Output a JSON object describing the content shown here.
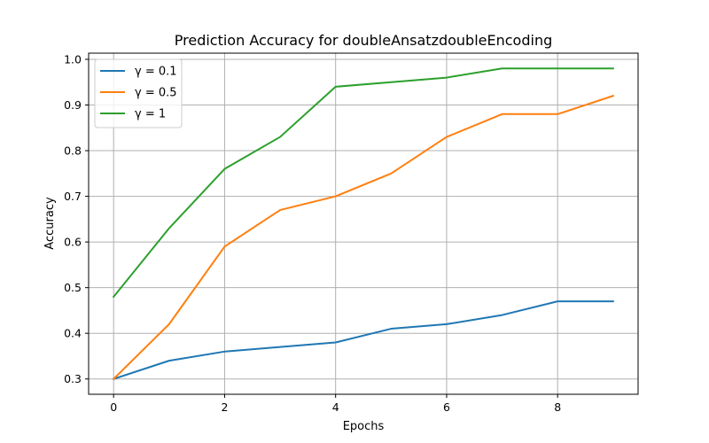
{
  "chart_data": {
    "type": "line",
    "title": "Prediction Accuracy for doubleAnsatzdoubleEncoding",
    "xlabel": "Epochs",
    "ylabel": "Accuracy",
    "x": [
      0,
      1,
      2,
      3,
      4,
      5,
      6,
      7,
      8,
      9
    ],
    "xlim": [
      -0.45,
      9.45
    ],
    "ylim": [
      0.2665,
      1.0135
    ],
    "xticks": [
      0,
      2,
      4,
      6,
      8
    ],
    "yticks": [
      0.3,
      0.4,
      0.5,
      0.6,
      0.7,
      0.8,
      0.9,
      1.0
    ],
    "xtick_labels": [
      "0",
      "2",
      "4",
      "6",
      "8"
    ],
    "ytick_labels": [
      "0.3",
      "0.4",
      "0.5",
      "0.6",
      "0.7",
      "0.8",
      "0.9",
      "1.0"
    ],
    "grid": true,
    "legend_position": "upper-left",
    "series": [
      {
        "name": "γ = 0.1",
        "color": "#1f77b4",
        "values": [
          0.3,
          0.34,
          0.36,
          0.37,
          0.38,
          0.41,
          0.42,
          0.44,
          0.47,
          0.47
        ]
      },
      {
        "name": "γ = 0.5",
        "color": "#ff7f0e",
        "values": [
          0.3,
          0.42,
          0.59,
          0.67,
          0.7,
          0.75,
          0.83,
          0.88,
          0.88,
          0.92
        ]
      },
      {
        "name": "γ = 1",
        "color": "#2ca02c",
        "values": [
          0.48,
          0.63,
          0.76,
          0.83,
          0.94,
          0.95,
          0.96,
          0.98,
          0.98,
          0.98
        ]
      }
    ]
  }
}
